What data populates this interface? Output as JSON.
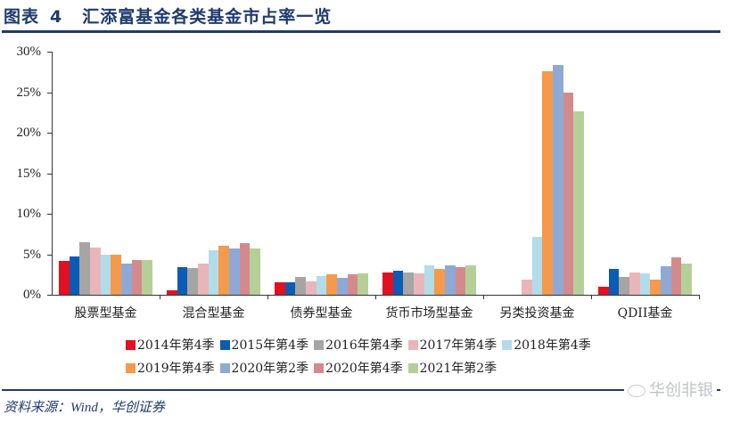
{
  "header": {
    "label": "图表",
    "number": "4",
    "title": "汇添富基金各类基金市占率一览"
  },
  "footer": {
    "source": "资料来源：Wind，华创证券",
    "watermark": "华创非银"
  },
  "chart_data": {
    "type": "bar",
    "title": "汇添富基金各类基金市占率一览",
    "xlabel": "",
    "ylabel": "",
    "ylim": [
      0,
      30
    ],
    "yticks": [
      "0%",
      "5%",
      "10%",
      "15%",
      "20%",
      "25%",
      "30%"
    ],
    "grid": false,
    "legend_position": "bottom",
    "categories": [
      "股票型基金",
      "混合型基金",
      "债券型基金",
      "货币市场型基金",
      "另类投资基金",
      "QDII基金"
    ],
    "series": [
      {
        "name": "2014年第4季",
        "color": "#e3101f",
        "values": [
          4.2,
          0.6,
          1.5,
          2.7,
          0.0,
          1.0
        ]
      },
      {
        "name": "2015年第4季",
        "color": "#0a5cb4",
        "values": [
          4.7,
          3.4,
          1.5,
          3.0,
          0.0,
          3.2
        ]
      },
      {
        "name": "2016年第4季",
        "color": "#a5a5a5",
        "values": [
          6.5,
          3.3,
          2.2,
          2.8,
          0.0,
          2.2
        ]
      },
      {
        "name": "2017年第4季",
        "color": "#e8b6b8",
        "values": [
          5.8,
          3.8,
          1.7,
          2.6,
          1.9,
          2.8
        ]
      },
      {
        "name": "2018年第4季",
        "color": "#b3dcea",
        "values": [
          5.0,
          5.5,
          2.3,
          3.6,
          7.1,
          2.6
        ]
      },
      {
        "name": "2019年第4季",
        "color": "#f59a4a",
        "values": [
          4.9,
          6.0,
          2.5,
          3.2,
          27.6,
          1.9
        ]
      },
      {
        "name": "2020年第2季",
        "color": "#8ea9d6",
        "values": [
          3.8,
          5.7,
          2.1,
          3.6,
          28.3,
          3.5
        ]
      },
      {
        "name": "2020年第4季",
        "color": "#d48a8c",
        "values": [
          4.3,
          6.4,
          2.5,
          3.4,
          25.0,
          4.6
        ]
      },
      {
        "name": "2021年第2季",
        "color": "#b5cf98",
        "values": [
          4.3,
          5.7,
          2.6,
          3.6,
          22.6,
          3.8
        ]
      }
    ]
  }
}
